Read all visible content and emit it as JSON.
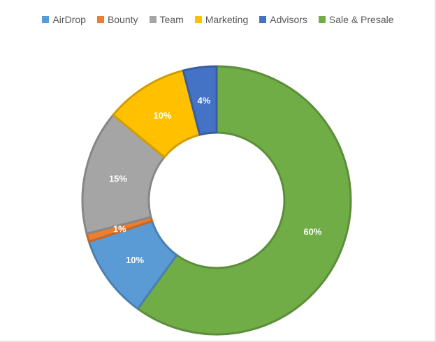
{
  "chart_data": {
    "type": "pie",
    "style": "donut",
    "categories": [
      "AirDrop",
      "Bounty",
      "Team",
      "Marketing",
      "Advisors",
      "Sale & Presale"
    ],
    "values": [
      10,
      1,
      15,
      10,
      4,
      60
    ],
    "value_labels": [
      "10%",
      "1%",
      "15%",
      "10%",
      "4%",
      "60%"
    ],
    "colors": [
      "#5B9BD5",
      "#ED7D31",
      "#A5A5A5",
      "#FFC000",
      "#4472C4",
      "#70AD47"
    ],
    "legend_position": "top",
    "start_angle_deg": 0,
    "direction": "clockwise"
  }
}
